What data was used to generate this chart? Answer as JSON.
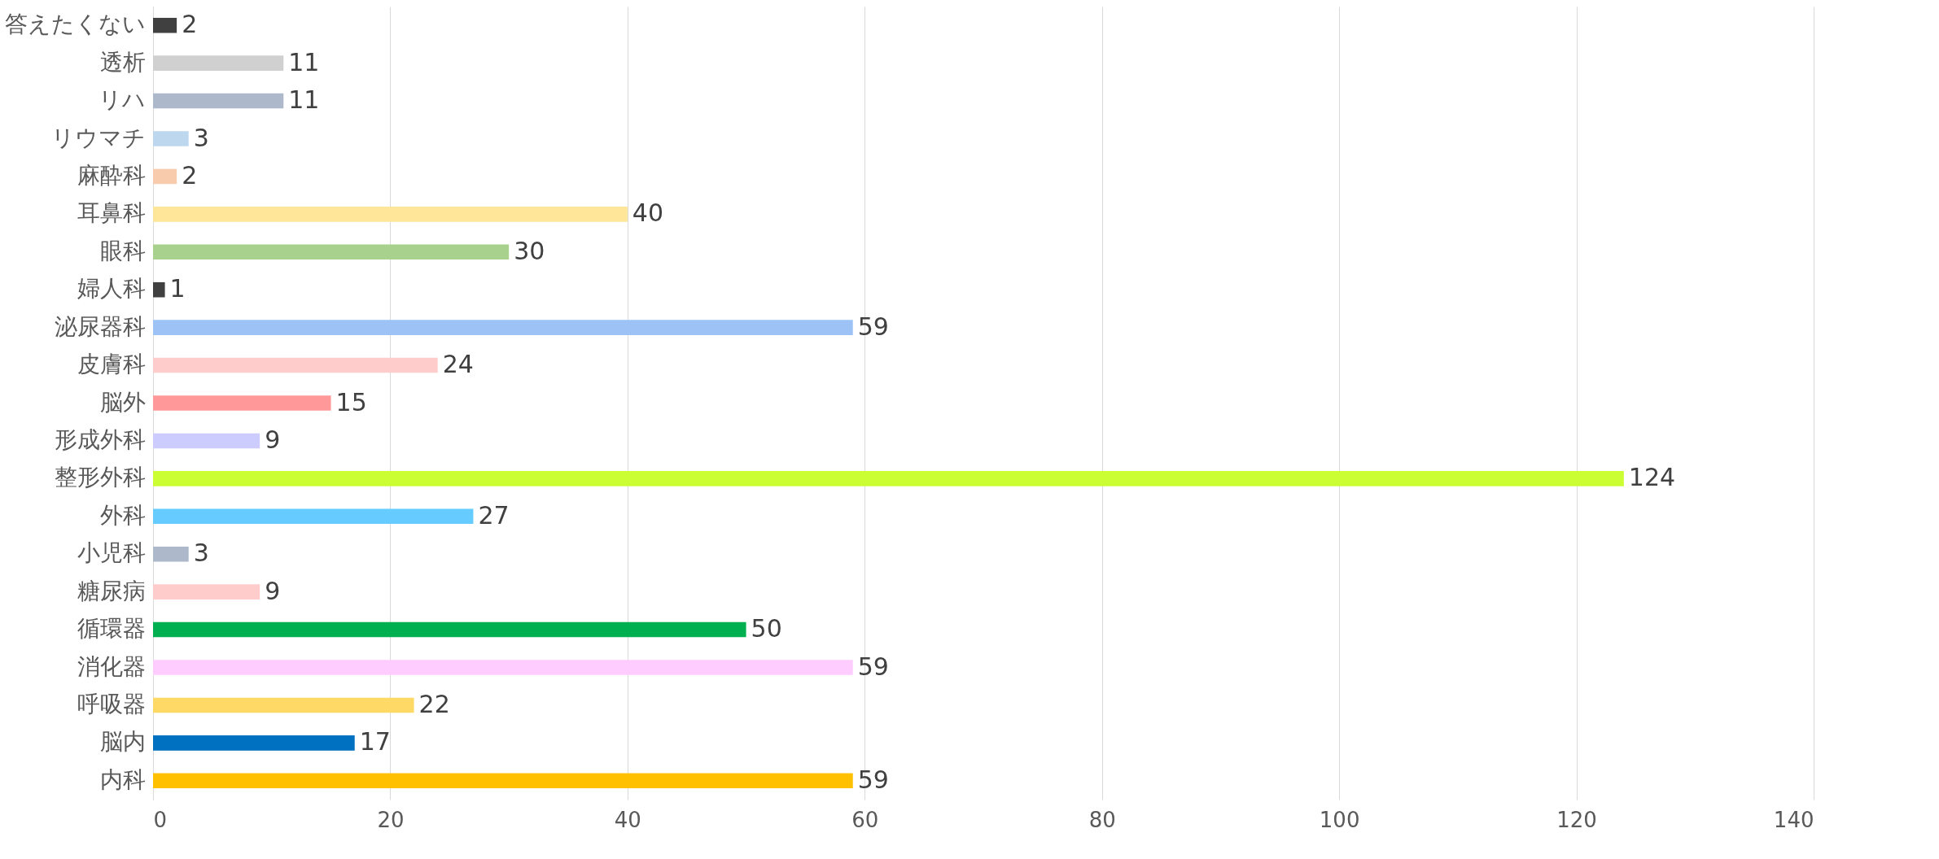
{
  "chart_data": {
    "type": "bar",
    "orientation": "horizontal",
    "categories": [
      "答えたくない",
      "透析",
      "リハ",
      "リウマチ",
      "麻酔科",
      "耳鼻科",
      "眼科",
      "婦人科",
      "泌尿器科",
      "皮膚科",
      "脳外",
      "形成外科",
      "整形外科",
      "外科",
      "小児科",
      "糖尿病",
      "循環器",
      "消化器",
      "呼吸器",
      "脳内",
      "内科"
    ],
    "values": [
      2,
      11,
      11,
      3,
      2,
      40,
      30,
      1,
      59,
      24,
      15,
      9,
      124,
      27,
      3,
      9,
      50,
      59,
      22,
      17,
      59
    ],
    "colors": [
      "#404040",
      "#d0d0d0",
      "#adb9ca",
      "#bdd7ee",
      "#f8cbad",
      "#ffe699",
      "#a9d18e",
      "#404040",
      "#9dc3f6",
      "#ffcccc",
      "#ff9999",
      "#ccccff",
      "#ccff33",
      "#66ccff",
      "#adb9ca",
      "#ffcccc",
      "#00b050",
      "#ffccff",
      "#ffd966",
      "#0070c0",
      "#ffc000"
    ],
    "xlim": [
      0,
      140
    ],
    "xticks": [
      0,
      20,
      40,
      60,
      80,
      100,
      120,
      140
    ],
    "grid": "x",
    "data_labels": true
  }
}
